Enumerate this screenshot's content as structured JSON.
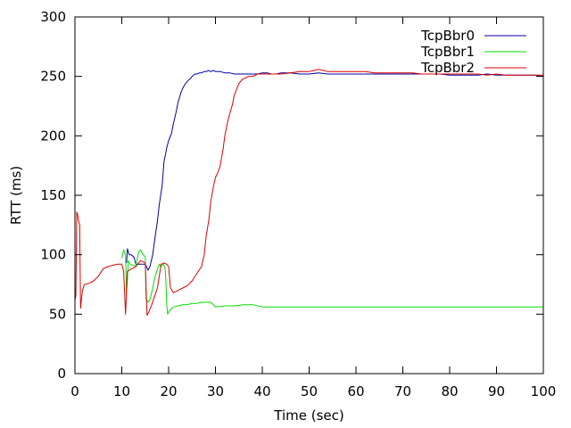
{
  "chart_data": {
    "type": "line",
    "title": "",
    "xlabel": "Time (sec)",
    "ylabel": "RTT (ms)",
    "xlim": [
      0,
      100
    ],
    "ylim": [
      0,
      300
    ],
    "xticks": [
      0,
      10,
      20,
      30,
      40,
      50,
      60,
      70,
      80,
      90,
      100
    ],
    "yticks": [
      0,
      50,
      100,
      150,
      200,
      250,
      300
    ],
    "grid": false,
    "legend_position": "top-right",
    "series": [
      {
        "name": "TcpBbr0",
        "color": "#0000a0",
        "points": [
          [
            11.0,
            93
          ],
          [
            11.2,
            105
          ],
          [
            11.6,
            100
          ],
          [
            12.0,
            100
          ],
          [
            12.6,
            98
          ],
          [
            13.0,
            92
          ],
          [
            14.0,
            92
          ],
          [
            15.0,
            92
          ],
          [
            15.6,
            87
          ],
          [
            16.0,
            90
          ],
          [
            16.6,
            100
          ],
          [
            17.0,
            112
          ],
          [
            17.6,
            128
          ],
          [
            18.0,
            142
          ],
          [
            18.6,
            158
          ],
          [
            19.0,
            178
          ],
          [
            19.6,
            190
          ],
          [
            20.0,
            196
          ],
          [
            20.6,
            202
          ],
          [
            21.0,
            210
          ],
          [
            21.6,
            220
          ],
          [
            22.0,
            228
          ],
          [
            22.6,
            236
          ],
          [
            23.0,
            240
          ],
          [
            23.6,
            244
          ],
          [
            24.0,
            246
          ],
          [
            24.6,
            248
          ],
          [
            25.0,
            250
          ],
          [
            25.6,
            252
          ],
          [
            26.0,
            252
          ],
          [
            26.6,
            253
          ],
          [
            27.0,
            253
          ],
          [
            27.6,
            254
          ],
          [
            28.0,
            254
          ],
          [
            28.6,
            255
          ],
          [
            29.0,
            254
          ],
          [
            29.6,
            255
          ],
          [
            30.0,
            254
          ],
          [
            31.0,
            254
          ],
          [
            32.0,
            253
          ],
          [
            33.0,
            253
          ],
          [
            34.0,
            252
          ],
          [
            35.0,
            252
          ],
          [
            36.0,
            252
          ],
          [
            37.0,
            252
          ],
          [
            38.0,
            252
          ],
          [
            39.0,
            252
          ],
          [
            40.0,
            253
          ],
          [
            41.0,
            253
          ],
          [
            42.0,
            252
          ],
          [
            43.0,
            252
          ],
          [
            44.0,
            253
          ],
          [
            45.0,
            253
          ],
          [
            46.0,
            253
          ],
          [
            48.0,
            252
          ],
          [
            50.0,
            252
          ],
          [
            52.0,
            253
          ],
          [
            54.0,
            252
          ],
          [
            56.0,
            252
          ],
          [
            58.0,
            252
          ],
          [
            60.0,
            252
          ],
          [
            62.0,
            252
          ],
          [
            64.0,
            252
          ],
          [
            66.0,
            252
          ],
          [
            68.0,
            252
          ],
          [
            70.0,
            252
          ],
          [
            72.0,
            252
          ],
          [
            74.0,
            252
          ],
          [
            76.0,
            252
          ],
          [
            78.0,
            252
          ],
          [
            80.0,
            251
          ],
          [
            82.0,
            251
          ],
          [
            84.0,
            251
          ],
          [
            86.0,
            251
          ],
          [
            88.0,
            252
          ],
          [
            90.0,
            251
          ],
          [
            92.0,
            251
          ],
          [
            94.0,
            251
          ],
          [
            96.0,
            251
          ],
          [
            98.0,
            251
          ],
          [
            100.0,
            250
          ]
        ]
      },
      {
        "name": "TcpBbr1",
        "color": "#00dd00",
        "points": [
          [
            10.0,
            97
          ],
          [
            10.4,
            104
          ],
          [
            10.8,
            100
          ],
          [
            11.0,
            66
          ],
          [
            11.4,
            95
          ],
          [
            11.8,
            92
          ],
          [
            12.4,
            91
          ],
          [
            13.0,
            91
          ],
          [
            13.6,
            102
          ],
          [
            14.0,
            104
          ],
          [
            14.4,
            101
          ],
          [
            15.0,
            98
          ],
          [
            15.2,
            63
          ],
          [
            15.6,
            60
          ],
          [
            16.0,
            62
          ],
          [
            16.6,
            72
          ],
          [
            17.0,
            80
          ],
          [
            17.6,
            88
          ],
          [
            18.0,
            92
          ],
          [
            18.4,
            90
          ],
          [
            18.8,
            92
          ],
          [
            19.2,
            90
          ],
          [
            19.4,
            80
          ],
          [
            19.6,
            58
          ],
          [
            19.8,
            50
          ],
          [
            20.0,
            52
          ],
          [
            20.5,
            54
          ],
          [
            21.0,
            56
          ],
          [
            22.0,
            57
          ],
          [
            23.0,
            58
          ],
          [
            24.0,
            58
          ],
          [
            25.0,
            59
          ],
          [
            26.0,
            59
          ],
          [
            27.0,
            60
          ],
          [
            28.0,
            60
          ],
          [
            29.0,
            60
          ],
          [
            30.0,
            56
          ],
          [
            32.0,
            57
          ],
          [
            34.0,
            57
          ],
          [
            36.0,
            58
          ],
          [
            38.0,
            58
          ],
          [
            40.0,
            56
          ],
          [
            45.0,
            56
          ],
          [
            50.0,
            56
          ],
          [
            55.0,
            56
          ],
          [
            60.0,
            56
          ],
          [
            65.0,
            56
          ],
          [
            70.0,
            56
          ],
          [
            75.0,
            56
          ],
          [
            80.0,
            56
          ],
          [
            85.0,
            56
          ],
          [
            90.0,
            56
          ],
          [
            95.0,
            56
          ],
          [
            100.0,
            56
          ]
        ]
      },
      {
        "name": "TcpBbr2",
        "color": "#dd0000",
        "points": [
          [
            0.0,
            62
          ],
          [
            0.2,
            65
          ],
          [
            0.4,
            136
          ],
          [
            0.6,
            133
          ],
          [
            0.8,
            128
          ],
          [
            1.0,
            125
          ],
          [
            1.2,
            55
          ],
          [
            1.6,
            70
          ],
          [
            2.0,
            75
          ],
          [
            3.0,
            76
          ],
          [
            4.0,
            78
          ],
          [
            5.0,
            82
          ],
          [
            6.0,
            88
          ],
          [
            7.0,
            90
          ],
          [
            8.0,
            91
          ],
          [
            9.0,
            92
          ],
          [
            10.0,
            92
          ],
          [
            10.4,
            86
          ],
          [
            10.8,
            50
          ],
          [
            11.2,
            86
          ],
          [
            12.0,
            88
          ],
          [
            13.0,
            90
          ],
          [
            13.4,
            92
          ],
          [
            14.0,
            95
          ],
          [
            14.6,
            94
          ],
          [
            15.0,
            93
          ],
          [
            15.4,
            49
          ],
          [
            15.8,
            52
          ],
          [
            16.4,
            58
          ],
          [
            17.0,
            65
          ],
          [
            17.6,
            72
          ],
          [
            18.0,
            82
          ],
          [
            18.4,
            92
          ],
          [
            19.0,
            93
          ],
          [
            19.6,
            92
          ],
          [
            20.0,
            90
          ],
          [
            20.4,
            72
          ],
          [
            21.0,
            68
          ],
          [
            22.0,
            70
          ],
          [
            23.0,
            72
          ],
          [
            24.0,
            74
          ],
          [
            25.0,
            78
          ],
          [
            26.0,
            84
          ],
          [
            27.0,
            90
          ],
          [
            27.6,
            100
          ],
          [
            28.0,
            115
          ],
          [
            28.6,
            130
          ],
          [
            29.0,
            145
          ],
          [
            29.6,
            158
          ],
          [
            30.0,
            165
          ],
          [
            30.6,
            170
          ],
          [
            31.0,
            175
          ],
          [
            31.6,
            188
          ],
          [
            32.0,
            200
          ],
          [
            32.6,
            212
          ],
          [
            33.0,
            218
          ],
          [
            33.6,
            226
          ],
          [
            34.0,
            234
          ],
          [
            34.6,
            240
          ],
          [
            35.0,
            244
          ],
          [
            35.6,
            247
          ],
          [
            36.0,
            248
          ],
          [
            36.6,
            249
          ],
          [
            37.0,
            250
          ],
          [
            37.6,
            250
          ],
          [
            38.0,
            250
          ],
          [
            39.0,
            252
          ],
          [
            40.0,
            252
          ],
          [
            42.0,
            252
          ],
          [
            44.0,
            252
          ],
          [
            46.0,
            253
          ],
          [
            48.0,
            254
          ],
          [
            50.0,
            254
          ],
          [
            51.0,
            255
          ],
          [
            52.0,
            256
          ],
          [
            53.0,
            255
          ],
          [
            54.0,
            254
          ],
          [
            56.0,
            254
          ],
          [
            58.0,
            254
          ],
          [
            60.0,
            254
          ],
          [
            62.0,
            254
          ],
          [
            64.0,
            253
          ],
          [
            66.0,
            253
          ],
          [
            68.0,
            253
          ],
          [
            70.0,
            253
          ],
          [
            72.0,
            253
          ],
          [
            74.0,
            252
          ],
          [
            76.0,
            252
          ],
          [
            78.0,
            252
          ],
          [
            80.0,
            252
          ],
          [
            82.0,
            252
          ],
          [
            84.0,
            252
          ],
          [
            86.0,
            252
          ],
          [
            88.0,
            251
          ],
          [
            90.0,
            252
          ],
          [
            92.0,
            251
          ],
          [
            94.0,
            251
          ],
          [
            96.0,
            251
          ],
          [
            98.0,
            251
          ],
          [
            100.0,
            251
          ]
        ]
      }
    ]
  },
  "colors": {
    "background": "#ffffff",
    "axis": "#000000"
  }
}
